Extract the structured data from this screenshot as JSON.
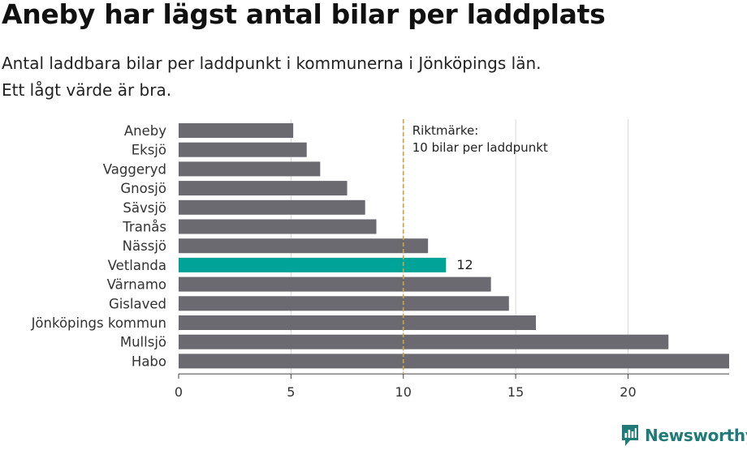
{
  "title": "Aneby har lägst antal bilar per laddplats",
  "subtitle_line1": "Antal laddbara bilar per laddpunkt i kommunerna i Jönköpings län.",
  "subtitle_line2": "Ett lågt värde är bra.",
  "logo": {
    "text": "Newsworthy",
    "icon": "newsworthy-bar-chart-icon"
  },
  "colors": {
    "bar": "#6b6a70",
    "highlight": "#00a398",
    "reference": "#d4a23c",
    "grid": "#d9d9d9"
  },
  "chart_data": {
    "type": "bar",
    "orientation": "horizontal",
    "categories": [
      "Aneby",
      "Eksjö",
      "Vaggeryd",
      "Gnosjö",
      "Sävsjö",
      "Tranås",
      "Nässjö",
      "Vetlanda",
      "Värnamo",
      "Gislaved",
      "Jönköpings kommun",
      "Mullsjö",
      "Habo"
    ],
    "values": [
      5.1,
      5.7,
      6.3,
      7.5,
      8.3,
      8.8,
      11.1,
      11.9,
      13.9,
      14.7,
      15.9,
      21.8,
      24.5
    ],
    "highlight": {
      "category": "Vetlanda",
      "label": "12"
    },
    "xlim": [
      0,
      24.5
    ],
    "xticks": [
      0,
      5,
      10,
      15,
      20
    ],
    "grid": true,
    "reference_line": {
      "value": 10,
      "label_line1": "Riktmärke:",
      "label_line2": "10 bilar per laddpunkt"
    }
  }
}
